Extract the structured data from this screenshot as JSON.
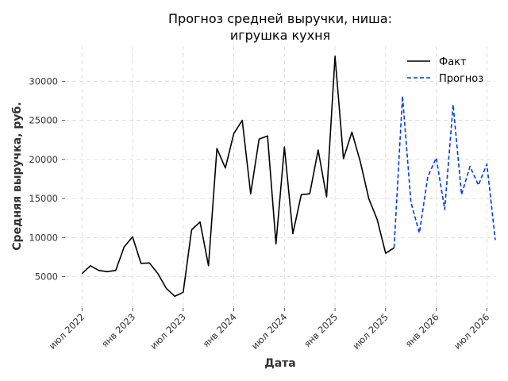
{
  "chart_data": {
    "type": "line",
    "title": [
      "Прогноз средней выручки, ниша:",
      "игрушка кухня"
    ],
    "xlabel": "Дата",
    "ylabel": "Средняя выручка, руб.",
    "grid": true,
    "legend_position": "top-right",
    "x_range": [
      "2022-05",
      "2026-08"
    ],
    "ylim": [
      1000,
      34500
    ],
    "x_ticks": [
      {
        "date": "2022-07",
        "label": "июл 2022"
      },
      {
        "date": "2023-01",
        "label": "янв 2023"
      },
      {
        "date": "2023-07",
        "label": "июл 2023"
      },
      {
        "date": "2024-01",
        "label": "янв 2024"
      },
      {
        "date": "2024-07",
        "label": "июл 2024"
      },
      {
        "date": "2025-01",
        "label": "янв 2025"
      },
      {
        "date": "2025-07",
        "label": "июл 2025"
      },
      {
        "date": "2026-01",
        "label": "янв 2026"
      },
      {
        "date": "2026-07",
        "label": "июл 2026"
      }
    ],
    "y_ticks": [
      5000,
      10000,
      15000,
      20000,
      25000,
      30000
    ],
    "series": [
      {
        "name": "Факт",
        "color": "#000000",
        "style": "solid",
        "points": [
          [
            "2022-07",
            5400
          ],
          [
            "2022-08",
            6400
          ],
          [
            "2022-09",
            5800
          ],
          [
            "2022-10",
            5650
          ],
          [
            "2022-11",
            5800
          ],
          [
            "2022-12",
            8800
          ],
          [
            "2023-01",
            10100
          ],
          [
            "2023-02",
            6700
          ],
          [
            "2023-03",
            6750
          ],
          [
            "2023-04",
            5400
          ],
          [
            "2023-05",
            3500
          ],
          [
            "2023-06",
            2500
          ],
          [
            "2023-07",
            3000
          ],
          [
            "2023-08",
            11000
          ],
          [
            "2023-09",
            12000
          ],
          [
            "2023-10",
            6400
          ],
          [
            "2023-11",
            21400
          ],
          [
            "2023-12",
            18900
          ],
          [
            "2024-01",
            23300
          ],
          [
            "2024-02",
            25000
          ],
          [
            "2024-03",
            15600
          ],
          [
            "2024-04",
            22600
          ],
          [
            "2024-05",
            23000
          ],
          [
            "2024-06",
            9200
          ],
          [
            "2024-07",
            21600
          ],
          [
            "2024-08",
            10500
          ],
          [
            "2024-09",
            15500
          ],
          [
            "2024-10",
            15600
          ],
          [
            "2024-11",
            21200
          ],
          [
            "2024-12",
            15200
          ],
          [
            "2025-01",
            33200
          ],
          [
            "2025-02",
            20100
          ],
          [
            "2025-03",
            23500
          ],
          [
            "2025-04",
            19700
          ],
          [
            "2025-05",
            15000
          ],
          [
            "2025-06",
            12300
          ],
          [
            "2025-07",
            8000
          ],
          [
            "2025-08",
            8700
          ]
        ]
      },
      {
        "name": "Прогноз",
        "color": "#0039e6",
        "style": "dashed",
        "points": [
          [
            "2025-08",
            8700
          ],
          [
            "2025-09",
            28100
          ],
          [
            "2025-10",
            14500
          ],
          [
            "2025-11",
            10600
          ],
          [
            "2025-12",
            17800
          ],
          [
            "2026-01",
            20200
          ],
          [
            "2026-02",
            13600
          ],
          [
            "2026-03",
            27000
          ],
          [
            "2026-04",
            15500
          ],
          [
            "2026-05",
            19100
          ],
          [
            "2026-06",
            16700
          ],
          [
            "2026-07",
            19400
          ],
          [
            "2026-08",
            9700
          ]
        ]
      }
    ]
  }
}
